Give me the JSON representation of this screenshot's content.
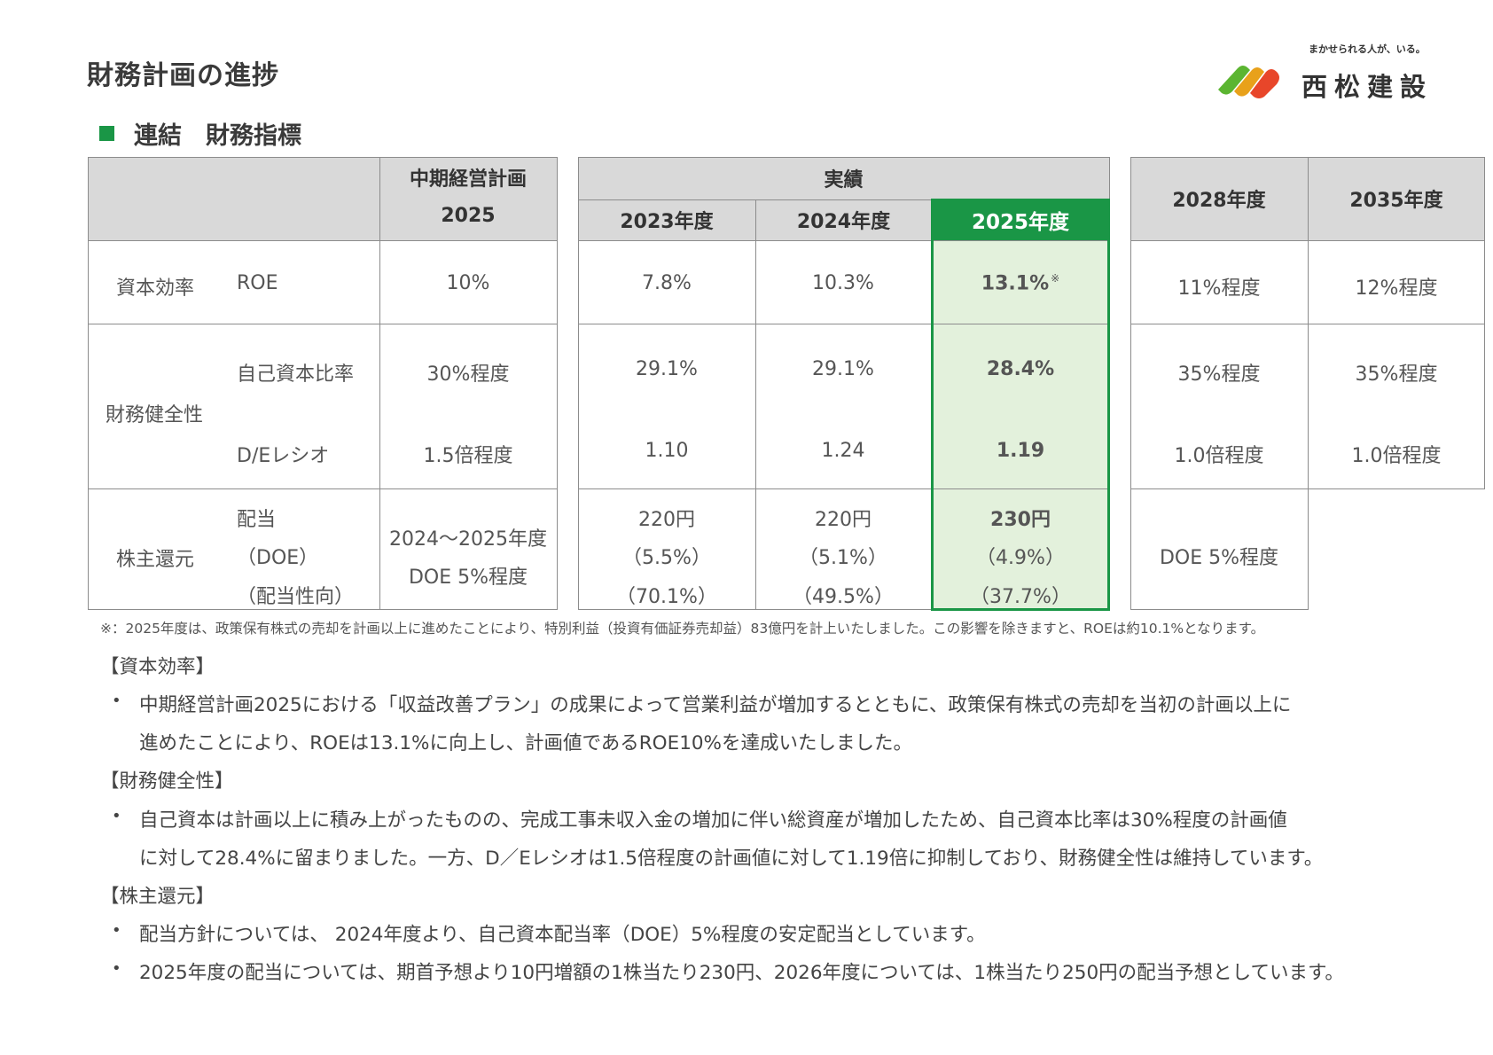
{
  "page": {
    "title": "財務計画の進捗",
    "section": "連結　財務指標"
  },
  "logo": {
    "tagline": "まかせられる人が、いる。",
    "name": "西松建設"
  },
  "table": {
    "plan_header_line1": "中期経営計画",
    "plan_header_line2": "2025",
    "actual_header": "実績",
    "years": [
      "2023年度",
      "2024年度",
      "2025年度"
    ],
    "future_years": [
      "2028年度",
      "2035年度"
    ],
    "roe": {
      "category": "資本効率",
      "label": "ROE",
      "plan": "10%",
      "actual": [
        "7.8%",
        "10.3%",
        "13.1%"
      ],
      "note_mark": "※",
      "future": [
        "11%程度",
        "12%程度"
      ]
    },
    "soundness": {
      "category": "財務健全性",
      "equity_ratio": {
        "label": "自己資本比率",
        "plan": "30%程度",
        "actual": [
          "29.1%",
          "29.1%",
          "28.4%"
        ],
        "future": [
          "35%程度",
          "35%程度"
        ]
      },
      "de_ratio": {
        "label": "D/Eレシオ",
        "plan": "1.5倍程度",
        "actual": [
          "1.10",
          "1.24",
          "1.19"
        ],
        "future": [
          "1.0倍程度",
          "1.0倍程度"
        ]
      }
    },
    "return": {
      "category": "株主還元",
      "labels": [
        "配当",
        "（DOE）",
        "（配当性向）"
      ],
      "plan": [
        "2024～2025年度",
        "DOE 5%程度"
      ],
      "actual": [
        [
          "220円",
          "（5.5%）",
          "（70.1%）"
        ],
        [
          "220円",
          "（5.1%）",
          "（49.5%）"
        ],
        [
          "230円",
          "（4.9%）",
          "（37.7%）"
        ]
      ],
      "future": "DOE 5%程度"
    }
  },
  "footnote": "※：2025年度は、政策保有株式の売却を計画以上に進めたことにより、特別利益（投資有価証券売却益）83億円を計上いたしました。この影響を除きますと、ROEは約10.1%となります。",
  "commentary": {
    "capital_efficiency_heading": "【資本効率】",
    "capital_efficiency_line1": "中期経営計画2025における「収益改善プラン」の成果によって営業利益が増加するとともに、政策保有株式の売却を当初の計画以上に",
    "capital_efficiency_line2": "進めたことにより、ROEは13.1%に向上し、計画値であるROE10%を達成いたしました。",
    "soundness_heading": "【財務健全性】",
    "soundness_line1": "自己資本は計画以上に積み上がったものの、完成工事未収入金の増加に伴い総資産が増加したため、自己資本比率は30%程度の計画値",
    "soundness_line2": "に対して28.4%に留まりました。一方、D／Eレシオは1.5倍程度の計画値に対して1.19倍に抑制しており、財務健全性は維持しています。",
    "return_heading": "【株主還元】",
    "return_line1": "配当方針については、 2024年度より、自己資本配当率（DOE）5%程度の安定配当としています。",
    "return_line2": "2025年度の配当については、期首予想より10円増額の1株当たり230円、2026年度については、1株当たり250円の配当予想としています。",
    "bullet_symbol": "•"
  },
  "colors": {
    "accent_green": "#1a9646",
    "highlight_fill": "#e3f1dc",
    "header_gray": "#d9d9d9"
  }
}
